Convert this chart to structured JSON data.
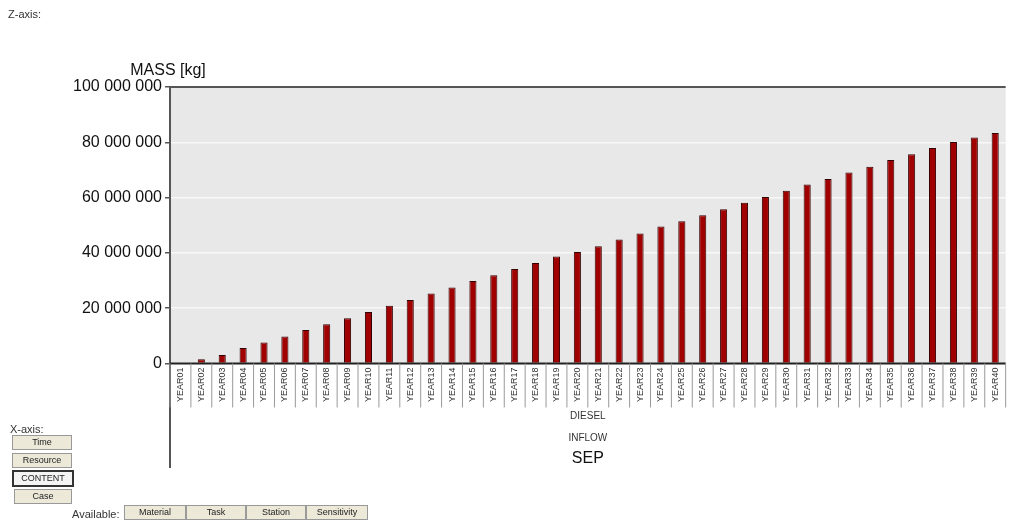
{
  "chart_data": {
    "type": "bar",
    "ylabel": "MASS [kg]",
    "xlabel": "SEP",
    "categories": [
      "YEAR01",
      "YEAR02",
      "YEAR03",
      "YEAR04",
      "YEAR05",
      "YEAR06",
      "YEAR07",
      "YEAR08",
      "YEAR09",
      "YEAR10",
      "YEAR11",
      "YEAR12",
      "YEAR13",
      "YEAR14",
      "YEAR15",
      "YEAR16",
      "YEAR17",
      "YEAR18",
      "YEAR19",
      "YEAR20",
      "YEAR21",
      "YEAR22",
      "YEAR23",
      "YEAR24",
      "YEAR25",
      "YEAR26",
      "YEAR27",
      "YEAR28",
      "YEAR29",
      "YEAR30",
      "YEAR31",
      "YEAR32",
      "YEAR33",
      "YEAR34",
      "YEAR35",
      "YEAR36",
      "YEAR37",
      "YEAR38",
      "YEAR39",
      "YEAR40"
    ],
    "values": [
      0,
      1500000,
      3100000,
      5600000,
      7600000,
      9800000,
      12100000,
      14200000,
      16400000,
      18600000,
      20900000,
      23000000,
      25300000,
      27500000,
      29800000,
      31900000,
      34200000,
      36300000,
      38700000,
      40300000,
      42400000,
      44800000,
      47000000,
      49500000,
      51400000,
      53600000,
      55800000,
      58100000,
      60200000,
      62500000,
      64700000,
      66700000,
      69100000,
      71200000,
      73600000,
      75700000,
      77900000,
      80100000,
      81700000,
      83400000
    ],
    "color": "#a00000",
    "ylim": [
      0,
      100000000
    ],
    "yticks": [
      {
        "value": 0,
        "label": "0"
      },
      {
        "value": 20000000,
        "label": "20 000 000"
      },
      {
        "value": 40000000,
        "label": "40 000 000"
      },
      {
        "value": 60000000,
        "label": "60 000 000"
      },
      {
        "value": 80000000,
        "label": "80 000 000"
      },
      {
        "value": 100000000,
        "label": "100 000 000"
      }
    ],
    "grid": "y",
    "legend": false,
    "annotations": [
      "Z-axis:",
      "DIESEL",
      "INFLOW",
      "X-axis:",
      "Time",
      "Resource",
      "CONTENT",
      "Case",
      "Available:",
      "Material",
      "Task",
      "Station",
      "Sensitivity"
    ]
  }
}
